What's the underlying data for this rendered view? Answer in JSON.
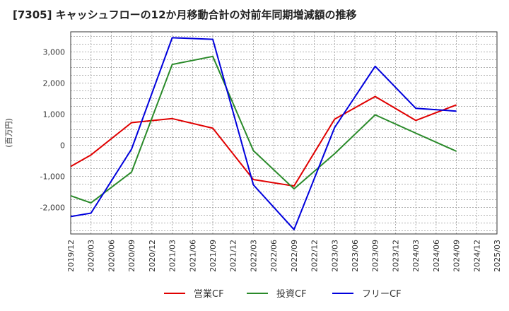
{
  "chart_data": {
    "type": "line",
    "title": "[7305]  キャッシュフローの12か月移動合計の対前年同期増減額の推移",
    "ylabel": "(百万円)",
    "xlabel": "",
    "x": [
      "2019/12",
      "2020/03",
      "2020/06",
      "2020/09",
      "2020/12",
      "2021/03",
      "2021/06",
      "2021/09",
      "2021/12",
      "2022/03",
      "2022/06",
      "2022/09",
      "2022/12",
      "2023/03",
      "2023/06",
      "2023/09",
      "2023/12",
      "2024/03",
      "2024/06",
      "2024/09",
      "2024/12",
      "2025/03"
    ],
    "yticks": [
      -2000,
      -1000,
      0,
      1000,
      2000,
      3000
    ],
    "ytick_labels": [
      "-2,000",
      "-1,000",
      "0",
      "1,000",
      "2,000",
      "3,000"
    ],
    "ylim": [
      -2850,
      3650
    ],
    "grid": true,
    "legend_position": "bottom",
    "series": [
      {
        "name": "営業CF",
        "color": "#e00000",
        "values": [
          -680,
          -310,
          null,
          730,
          null,
          860,
          null,
          550,
          null,
          -1100,
          null,
          -1310,
          null,
          840,
          null,
          1570,
          null,
          800,
          null,
          1300,
          null,
          null
        ]
      },
      {
        "name": "投資CF",
        "color": "#2a8a2a",
        "values": [
          -1620,
          -1850,
          null,
          -860,
          null,
          2600,
          null,
          2860,
          null,
          -170,
          null,
          -1400,
          null,
          -270,
          null,
          980,
          null,
          390,
          null,
          -190,
          null,
          null
        ]
      },
      {
        "name": "フリーCF",
        "color": "#0000dd",
        "values": [
          -2290,
          -2180,
          null,
          -120,
          null,
          3460,
          null,
          3410,
          null,
          -1270,
          null,
          -2710,
          null,
          570,
          null,
          2540,
          null,
          1190,
          null,
          1100,
          null,
          null
        ]
      }
    ]
  }
}
